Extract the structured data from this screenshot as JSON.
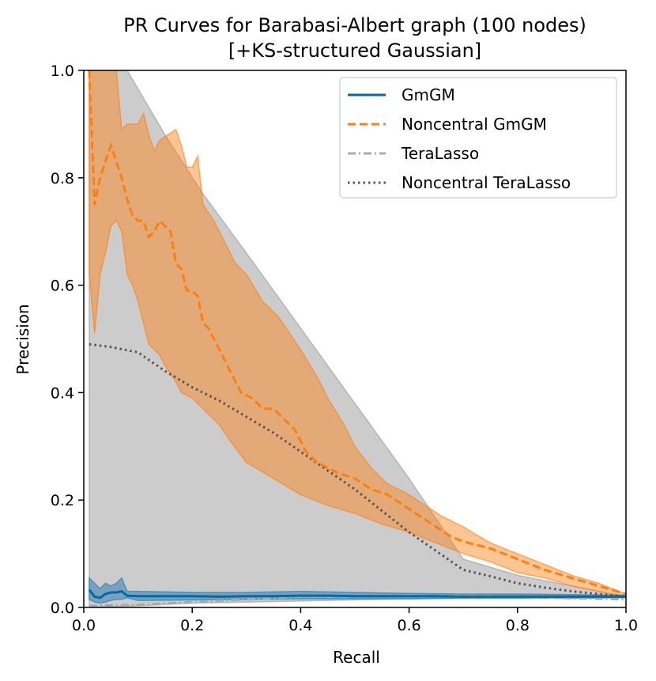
{
  "chart_data": {
    "type": "line",
    "title_line1": "PR Curves for Barabasi-Albert graph (100 nodes)",
    "title_line2": "[+KS-structured Gaussian]",
    "xlabel": "Recall",
    "ylabel": "Precision",
    "xlim": [
      0.0,
      1.0
    ],
    "ylim": [
      0.0,
      1.0
    ],
    "xticks": [
      {
        "value": 0.0,
        "label": "0.0"
      },
      {
        "value": 0.2,
        "label": "0.2"
      },
      {
        "value": 0.4,
        "label": "0.4"
      },
      {
        "value": 0.6,
        "label": "0.6"
      },
      {
        "value": 0.8,
        "label": "0.8"
      },
      {
        "value": 1.0,
        "label": "1.0"
      }
    ],
    "yticks": [
      {
        "value": 0.0,
        "label": "0.0"
      },
      {
        "value": 0.2,
        "label": "0.2"
      },
      {
        "value": 0.4,
        "label": "0.4"
      },
      {
        "value": 0.6,
        "label": "0.6"
      },
      {
        "value": 0.8,
        "label": "0.8"
      },
      {
        "value": 1.0,
        "label": "1.0"
      }
    ],
    "legend_position": "top-right",
    "series": [
      {
        "name": "TeraLasso",
        "color": "#aaaaaa",
        "dash": "dashdot",
        "band_color": "#999999",
        "band_opacity": 0.5,
        "band_upper": [
          [
            0.01,
            1.0
          ],
          [
            0.08,
            1.0
          ],
          [
            0.15,
            0.88
          ],
          [
            0.22,
            0.77
          ],
          [
            0.3,
            0.66
          ],
          [
            0.4,
            0.52
          ],
          [
            0.5,
            0.38
          ],
          [
            0.6,
            0.24
          ],
          [
            0.7,
            0.09
          ],
          [
            0.8,
            0.06
          ],
          [
            0.9,
            0.04
          ],
          [
            1.0,
            0.02
          ]
        ],
        "band_lower": [
          [
            0.01,
            0.0
          ],
          [
            0.1,
            0.003
          ],
          [
            0.2,
            0.008
          ],
          [
            0.4,
            0.012
          ],
          [
            0.6,
            0.016
          ],
          [
            0.8,
            0.02
          ],
          [
            0.9,
            0.02
          ],
          [
            1.0,
            0.02
          ]
        ],
        "mean": [
          [
            0.01,
            0.003
          ],
          [
            0.1,
            0.005
          ],
          [
            0.2,
            0.01
          ],
          [
            0.3,
            0.015
          ],
          [
            0.4,
            0.02
          ],
          [
            0.5,
            0.02
          ],
          [
            0.6,
            0.022
          ],
          [
            0.7,
            0.022
          ],
          [
            0.8,
            0.02
          ],
          [
            0.9,
            0.017
          ],
          [
            1.0,
            0.015
          ]
        ]
      },
      {
        "name": "Noncentral TeraLasso",
        "color": "#555555",
        "dash": "dotted",
        "mean": [
          [
            0.01,
            0.49
          ],
          [
            0.05,
            0.485
          ],
          [
            0.1,
            0.475
          ],
          [
            0.15,
            0.44
          ],
          [
            0.2,
            0.41
          ],
          [
            0.25,
            0.385
          ],
          [
            0.3,
            0.355
          ],
          [
            0.35,
            0.325
          ],
          [
            0.4,
            0.29
          ],
          [
            0.45,
            0.255
          ],
          [
            0.5,
            0.22
          ],
          [
            0.55,
            0.18
          ],
          [
            0.6,
            0.14
          ],
          [
            0.65,
            0.105
          ],
          [
            0.7,
            0.07
          ],
          [
            0.75,
            0.058
          ],
          [
            0.8,
            0.045
          ],
          [
            0.85,
            0.037
          ],
          [
            0.9,
            0.03
          ],
          [
            0.95,
            0.025
          ],
          [
            1.0,
            0.02
          ]
        ]
      },
      {
        "name": "Noncentral GmGM",
        "color": "#ff7f0e",
        "dash": "dashed",
        "band_color": "#ff7f0e",
        "band_opacity": 0.45,
        "band_upper": [
          [
            0.01,
            1.0
          ],
          [
            0.02,
            1.0
          ],
          [
            0.05,
            1.0
          ],
          [
            0.06,
            1.0
          ],
          [
            0.07,
            0.89
          ],
          [
            0.08,
            0.9
          ],
          [
            0.1,
            0.9
          ],
          [
            0.11,
            0.92
          ],
          [
            0.12,
            0.88
          ],
          [
            0.13,
            0.85
          ],
          [
            0.14,
            0.87
          ],
          [
            0.17,
            0.89
          ],
          [
            0.18,
            0.86
          ],
          [
            0.19,
            0.82
          ],
          [
            0.2,
            0.82
          ],
          [
            0.21,
            0.84
          ],
          [
            0.22,
            0.75
          ],
          [
            0.24,
            0.72
          ],
          [
            0.26,
            0.68
          ],
          [
            0.28,
            0.64
          ],
          [
            0.3,
            0.62
          ],
          [
            0.33,
            0.57
          ],
          [
            0.36,
            0.54
          ],
          [
            0.4,
            0.48
          ],
          [
            0.43,
            0.43
          ],
          [
            0.45,
            0.39
          ],
          [
            0.48,
            0.34
          ],
          [
            0.5,
            0.3
          ],
          [
            0.53,
            0.26
          ],
          [
            0.56,
            0.23
          ],
          [
            0.6,
            0.21
          ],
          [
            0.63,
            0.19
          ],
          [
            0.66,
            0.17
          ],
          [
            0.7,
            0.15
          ],
          [
            0.75,
            0.12
          ],
          [
            0.8,
            0.1
          ],
          [
            0.85,
            0.08
          ],
          [
            0.9,
            0.06
          ],
          [
            0.95,
            0.045
          ],
          [
            1.0,
            0.025
          ]
        ],
        "band_lower": [
          [
            1.0,
            0.02
          ],
          [
            0.95,
            0.03
          ],
          [
            0.9,
            0.04
          ],
          [
            0.85,
            0.055
          ],
          [
            0.8,
            0.065
          ],
          [
            0.75,
            0.085
          ],
          [
            0.7,
            0.1
          ],
          [
            0.65,
            0.12
          ],
          [
            0.6,
            0.14
          ],
          [
            0.55,
            0.155
          ],
          [
            0.5,
            0.175
          ],
          [
            0.45,
            0.19
          ],
          [
            0.4,
            0.21
          ],
          [
            0.35,
            0.24
          ],
          [
            0.3,
            0.27
          ],
          [
            0.27,
            0.31
          ],
          [
            0.25,
            0.34
          ],
          [
            0.22,
            0.37
          ],
          [
            0.2,
            0.39
          ],
          [
            0.18,
            0.4
          ],
          [
            0.17,
            0.42
          ],
          [
            0.15,
            0.45
          ],
          [
            0.14,
            0.47
          ],
          [
            0.12,
            0.49
          ],
          [
            0.11,
            0.53
          ],
          [
            0.1,
            0.57
          ],
          [
            0.09,
            0.6
          ],
          [
            0.08,
            0.62
          ],
          [
            0.07,
            0.7
          ],
          [
            0.06,
            0.72
          ],
          [
            0.05,
            0.71
          ],
          [
            0.04,
            0.66
          ],
          [
            0.03,
            0.62
          ],
          [
            0.02,
            0.51
          ],
          [
            0.01,
            0.62
          ]
        ],
        "mean": [
          [
            0.01,
            1.0
          ],
          [
            0.02,
            0.75
          ],
          [
            0.03,
            0.8
          ],
          [
            0.04,
            0.83
          ],
          [
            0.05,
            0.86
          ],
          [
            0.06,
            0.83
          ],
          [
            0.07,
            0.8
          ],
          [
            0.08,
            0.76
          ],
          [
            0.09,
            0.73
          ],
          [
            0.1,
            0.72
          ],
          [
            0.11,
            0.72
          ],
          [
            0.12,
            0.69
          ],
          [
            0.13,
            0.7
          ],
          [
            0.14,
            0.72
          ],
          [
            0.15,
            0.71
          ],
          [
            0.16,
            0.7
          ],
          [
            0.17,
            0.64
          ],
          [
            0.18,
            0.63
          ],
          [
            0.19,
            0.59
          ],
          [
            0.2,
            0.59
          ],
          [
            0.21,
            0.58
          ],
          [
            0.22,
            0.53
          ],
          [
            0.23,
            0.52
          ],
          [
            0.25,
            0.48
          ],
          [
            0.27,
            0.44
          ],
          [
            0.29,
            0.4
          ],
          [
            0.31,
            0.39
          ],
          [
            0.33,
            0.37
          ],
          [
            0.35,
            0.37
          ],
          [
            0.37,
            0.35
          ],
          [
            0.39,
            0.33
          ],
          [
            0.41,
            0.29
          ],
          [
            0.43,
            0.27
          ],
          [
            0.45,
            0.26
          ],
          [
            0.47,
            0.25
          ],
          [
            0.5,
            0.24
          ],
          [
            0.53,
            0.22
          ],
          [
            0.56,
            0.21
          ],
          [
            0.59,
            0.19
          ],
          [
            0.62,
            0.17
          ],
          [
            0.65,
            0.15
          ],
          [
            0.68,
            0.13
          ],
          [
            0.71,
            0.12
          ],
          [
            0.75,
            0.11
          ],
          [
            0.8,
            0.09
          ],
          [
            0.85,
            0.07
          ],
          [
            0.9,
            0.055
          ],
          [
            0.95,
            0.04
          ],
          [
            1.0,
            0.025
          ]
        ]
      },
      {
        "name": "GmGM",
        "color": "#1f77b4",
        "line_color": "#006ba4",
        "dash": "solid",
        "band_color": "#1f77b4",
        "band_opacity": 0.5,
        "band_upper": [
          [
            0.01,
            0.055
          ],
          [
            0.02,
            0.045
          ],
          [
            0.03,
            0.035
          ],
          [
            0.04,
            0.045
          ],
          [
            0.05,
            0.04
          ],
          [
            0.06,
            0.045
          ],
          [
            0.07,
            0.055
          ],
          [
            0.08,
            0.03
          ],
          [
            0.1,
            0.03
          ],
          [
            0.2,
            0.028
          ],
          [
            0.3,
            0.028
          ],
          [
            0.4,
            0.03
          ],
          [
            0.5,
            0.028
          ],
          [
            0.6,
            0.026
          ],
          [
            0.7,
            0.025
          ],
          [
            0.8,
            0.025
          ],
          [
            0.9,
            0.024
          ],
          [
            1.0,
            0.023
          ]
        ],
        "band_lower": [
          [
            1.0,
            0.018
          ],
          [
            0.9,
            0.017
          ],
          [
            0.8,
            0.017
          ],
          [
            0.7,
            0.017
          ],
          [
            0.6,
            0.016
          ],
          [
            0.5,
            0.016
          ],
          [
            0.4,
            0.016
          ],
          [
            0.3,
            0.015
          ],
          [
            0.2,
            0.014
          ],
          [
            0.1,
            0.013
          ],
          [
            0.08,
            0.018
          ],
          [
            0.07,
            0.015
          ],
          [
            0.06,
            0.015
          ],
          [
            0.05,
            0.013
          ],
          [
            0.04,
            0.01
          ],
          [
            0.03,
            0.008
          ],
          [
            0.02,
            0.01
          ],
          [
            0.01,
            0.015
          ]
        ],
        "mean": [
          [
            0.01,
            0.033
          ],
          [
            0.02,
            0.02
          ],
          [
            0.03,
            0.018
          ],
          [
            0.04,
            0.025
          ],
          [
            0.05,
            0.028
          ],
          [
            0.06,
            0.028
          ],
          [
            0.07,
            0.03
          ],
          [
            0.08,
            0.022
          ],
          [
            0.1,
            0.021
          ],
          [
            0.15,
            0.021
          ],
          [
            0.2,
            0.021
          ],
          [
            0.25,
            0.02
          ],
          [
            0.3,
            0.021
          ],
          [
            0.35,
            0.021
          ],
          [
            0.4,
            0.022
          ],
          [
            0.45,
            0.022
          ],
          [
            0.5,
            0.021
          ],
          [
            0.55,
            0.021
          ],
          [
            0.6,
            0.021
          ],
          [
            0.65,
            0.021
          ],
          [
            0.7,
            0.02
          ],
          [
            0.75,
            0.02
          ],
          [
            0.8,
            0.02
          ],
          [
            0.85,
            0.02
          ],
          [
            0.9,
            0.02
          ],
          [
            0.95,
            0.02
          ],
          [
            1.0,
            0.02
          ]
        ]
      }
    ],
    "legend_order": [
      "GmGM",
      "Noncentral GmGM",
      "TeraLasso",
      "Noncentral TeraLasso"
    ]
  }
}
